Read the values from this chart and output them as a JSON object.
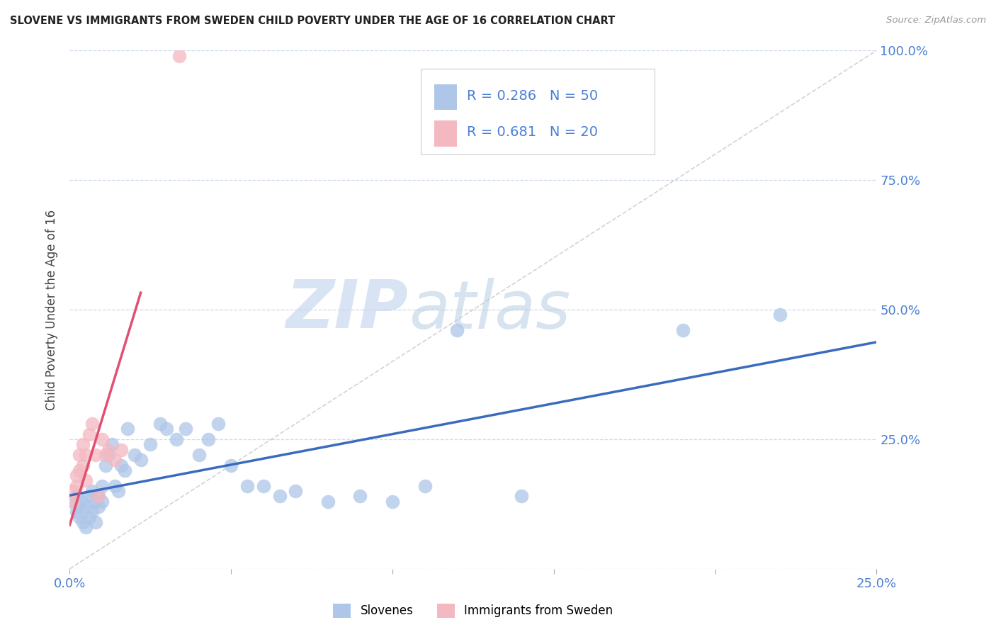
{
  "title": "SLOVENE VS IMMIGRANTS FROM SWEDEN CHILD POVERTY UNDER THE AGE OF 16 CORRELATION CHART",
  "source": "Source: ZipAtlas.com",
  "xlim": [
    0.0,
    0.25
  ],
  "ylim": [
    0.0,
    1.0
  ],
  "ylabel": "Child Poverty Under the Age of 16",
  "slovene_R": 0.286,
  "slovene_N": 50,
  "sweden_R": 0.681,
  "sweden_N": 20,
  "slovene_color": "#aec6e8",
  "sweden_color": "#f4b8c1",
  "slovene_line_color": "#3a6bbf",
  "sweden_line_color": "#e05070",
  "watermark_zip": "ZIP",
  "watermark_atlas": "atlas",
  "background_color": "#ffffff",
  "grid_color": "#c8d4e8",
  "tick_label_color": "#4a7fd4",
  "slovene_x": [
    0.001,
    0.002,
    0.002,
    0.003,
    0.003,
    0.004,
    0.004,
    0.005,
    0.005,
    0.006,
    0.006,
    0.007,
    0.007,
    0.008,
    0.008,
    0.009,
    0.009,
    0.01,
    0.01,
    0.011,
    0.012,
    0.013,
    0.014,
    0.015,
    0.016,
    0.017,
    0.018,
    0.02,
    0.022,
    0.025,
    0.028,
    0.03,
    0.033,
    0.036,
    0.04,
    0.043,
    0.046,
    0.05,
    0.055,
    0.06,
    0.065,
    0.07,
    0.08,
    0.09,
    0.1,
    0.11,
    0.12,
    0.14,
    0.19,
    0.22
  ],
  "slovene_y": [
    0.13,
    0.11,
    0.14,
    0.1,
    0.12,
    0.09,
    0.13,
    0.08,
    0.12,
    0.1,
    0.14,
    0.11,
    0.15,
    0.09,
    0.13,
    0.12,
    0.14,
    0.13,
    0.16,
    0.2,
    0.22,
    0.24,
    0.16,
    0.15,
    0.2,
    0.19,
    0.27,
    0.22,
    0.21,
    0.24,
    0.28,
    0.27,
    0.25,
    0.27,
    0.22,
    0.25,
    0.28,
    0.2,
    0.16,
    0.16,
    0.14,
    0.15,
    0.13,
    0.14,
    0.13,
    0.16,
    0.46,
    0.14,
    0.46,
    0.49
  ],
  "sweden_x": [
    0.001,
    0.001,
    0.002,
    0.002,
    0.003,
    0.003,
    0.004,
    0.004,
    0.005,
    0.005,
    0.006,
    0.007,
    0.008,
    0.009,
    0.01,
    0.011,
    0.012,
    0.014,
    0.016,
    0.034
  ],
  "sweden_y": [
    0.13,
    0.15,
    0.16,
    0.18,
    0.19,
    0.22,
    0.2,
    0.24,
    0.17,
    0.22,
    0.26,
    0.28,
    0.22,
    0.14,
    0.25,
    0.22,
    0.23,
    0.21,
    0.23,
    0.99
  ]
}
